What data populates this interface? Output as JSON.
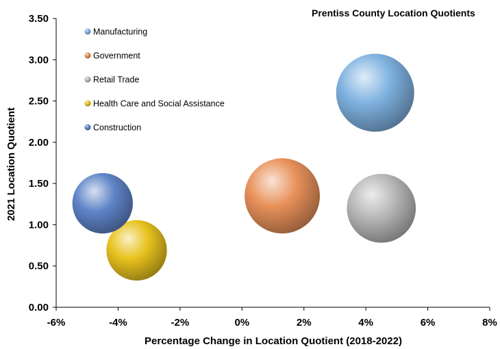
{
  "chart_data": {
    "type": "scatter",
    "title": "Prentiss County Location Quotients",
    "xlabel": "Percentage Change in Location Quotient (2018-2022)",
    "ylabel": "2021 Location Quotient",
    "xlim": [
      -6,
      8
    ],
    "ylim": [
      0,
      3.5
    ],
    "x_ticks": [
      "-6%",
      "-4%",
      "-2%",
      "0%",
      "2%",
      "4%",
      "6%",
      "8%"
    ],
    "y_ticks": [
      "0.00",
      "0.50",
      "1.00",
      "1.50",
      "2.00",
      "2.50",
      "3.00",
      "3.50"
    ],
    "legend_position": "top-left",
    "grid": false,
    "series": [
      {
        "name": "Manufacturing",
        "x": 4.3,
        "y": 2.6,
        "size": 1.0,
        "color": "#7fb2e0"
      },
      {
        "name": "Government",
        "x": 1.3,
        "y": 1.35,
        "size": 0.93,
        "color": "#e8915a"
      },
      {
        "name": "Retail Trade",
        "x": 4.5,
        "y": 1.2,
        "size": 0.78,
        "color": "#b8b8b8"
      },
      {
        "name": "Health Care and Social Assistance",
        "x": -3.4,
        "y": 0.69,
        "size": 0.6,
        "color": "#e8c21e"
      },
      {
        "name": "Construction",
        "x": -4.5,
        "y": 1.26,
        "size": 0.6,
        "color": "#5f84c8"
      }
    ]
  }
}
